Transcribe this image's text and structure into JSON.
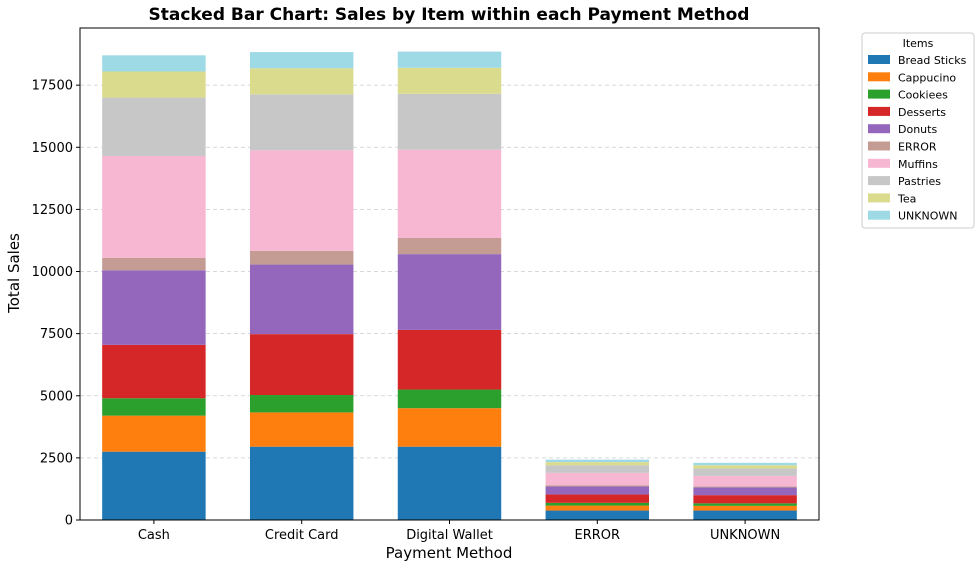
{
  "chart_data": {
    "type": "bar",
    "stacked": true,
    "title": "Stacked Bar Chart: Sales by Item within each Payment Method",
    "xlabel": "Payment Method",
    "ylabel": "Total Sales",
    "categories": [
      "Cash",
      "Credit Card",
      "Digital Wallet",
      "ERROR",
      "UNKNOWN"
    ],
    "ylim": [
      0,
      19800
    ],
    "yticks": [
      0,
      2500,
      5000,
      7500,
      10000,
      12500,
      15000,
      17500
    ],
    "grid": "y-dashed",
    "legend": {
      "title": "Items",
      "placement": "outside-top-right"
    },
    "series": [
      {
        "name": "Bread Sticks",
        "color": "#1f77b4",
        "values": [
          2750,
          2950,
          2950,
          380,
          380
        ]
      },
      {
        "name": "Cappucino",
        "color": "#ff7f0e",
        "values": [
          1450,
          1380,
          1550,
          200,
          190
        ]
      },
      {
        "name": "Cookiees",
        "color": "#2ca02c",
        "values": [
          700,
          700,
          750,
          110,
          100
        ]
      },
      {
        "name": "Desserts",
        "color": "#d62728",
        "values": [
          2150,
          2450,
          2400,
          340,
          330
        ]
      },
      {
        "name": "Donuts",
        "color": "#9467bd",
        "values": [
          3000,
          2800,
          3050,
          320,
          310
        ]
      },
      {
        "name": "ERROR",
        "color": "#c49c94",
        "values": [
          500,
          550,
          650,
          50,
          45
        ]
      },
      {
        "name": "Muffins",
        "color": "#f7b6d2",
        "values": [
          4100,
          4050,
          3550,
          500,
          420
        ]
      },
      {
        "name": "Pastries",
        "color": "#c7c7c7",
        "values": [
          2350,
          2250,
          2250,
          300,
          300
        ]
      },
      {
        "name": "Tea",
        "color": "#dbdb8d",
        "values": [
          1050,
          1050,
          1050,
          130,
          130
        ]
      },
      {
        "name": "UNKNOWN",
        "color": "#9edae5",
        "values": [
          650,
          650,
          650,
          100,
          95
        ]
      }
    ]
  }
}
